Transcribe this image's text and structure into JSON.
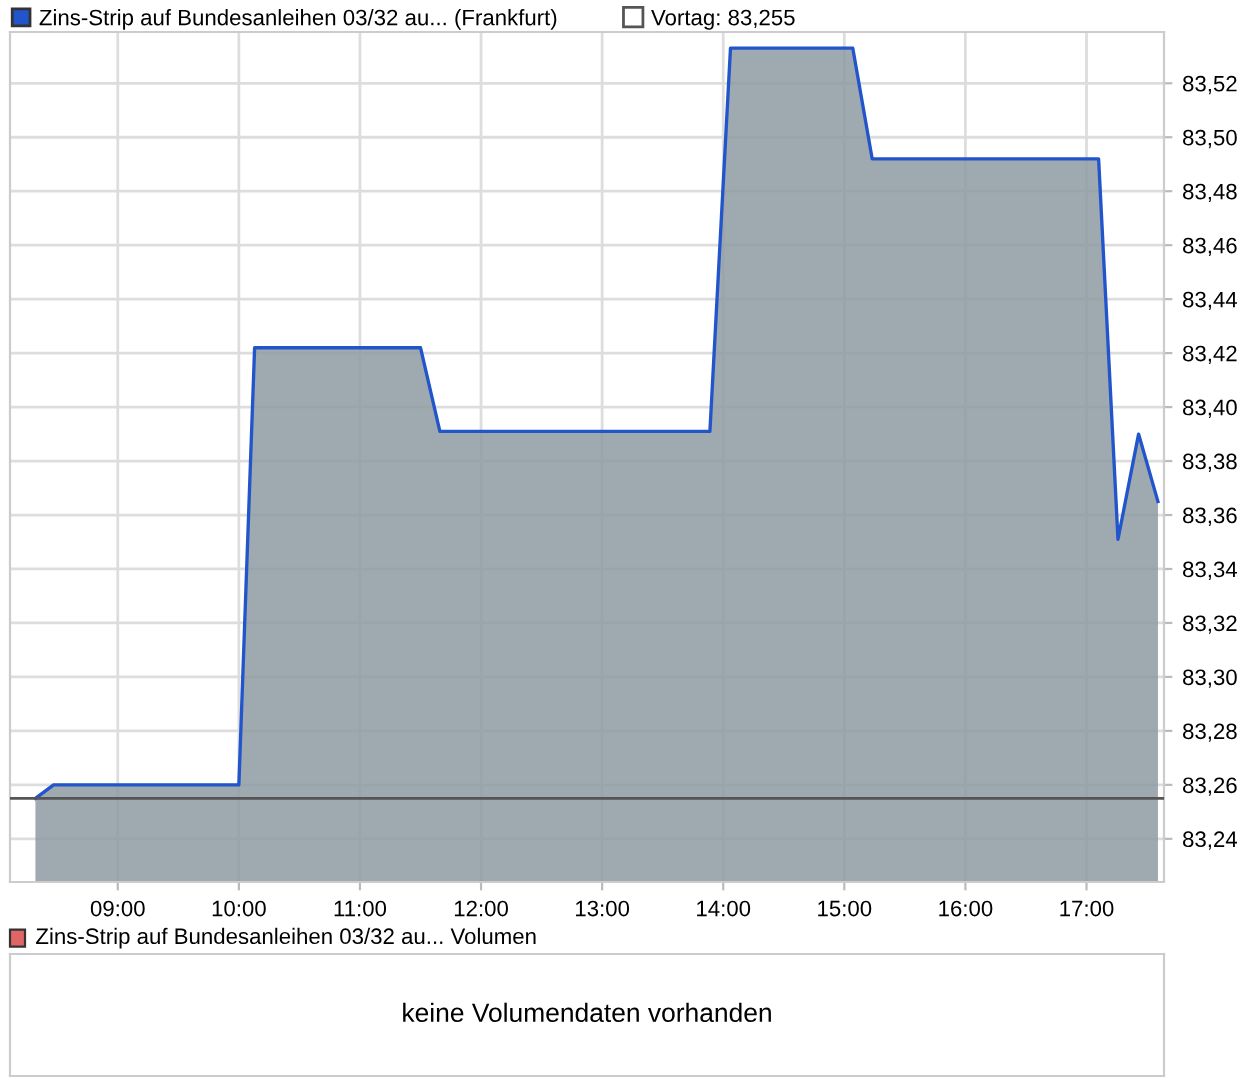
{
  "chart_data": [
    {
      "type": "area",
      "x": [
        8.32,
        8.47,
        10.0,
        10.13,
        11.5,
        11.66,
        13.89,
        14.06,
        15.07,
        15.23,
        17.1,
        17.26,
        17.43,
        17.59
      ],
      "series": [
        {
          "name": "Zins-Strip auf Bundesanleihen 03/32 au... (Frankfurt)",
          "color": "#2255cc",
          "values": [
            83.255,
            83.26,
            83.26,
            83.422,
            83.422,
            83.391,
            83.391,
            83.533,
            83.533,
            83.492,
            83.492,
            83.351,
            83.39,
            83.365
          ]
        }
      ],
      "xlim": [
        8.11,
        17.64
      ],
      "xticks": [
        {
          "value": 9,
          "label": "09:00"
        },
        {
          "value": 10,
          "label": "10:00"
        },
        {
          "value": 11,
          "label": "11:00"
        },
        {
          "value": 12,
          "label": "12:00"
        },
        {
          "value": 13,
          "label": "13:00"
        },
        {
          "value": 14,
          "label": "14:00"
        },
        {
          "value": 15,
          "label": "15:00"
        },
        {
          "value": 16,
          "label": "16:00"
        },
        {
          "value": 17,
          "label": "17:00"
        }
      ],
      "ylim": [
        83.224,
        83.539
      ],
      "yticks": [
        {
          "value": 83.24,
          "label": "83,24"
        },
        {
          "value": 83.26,
          "label": "83,26"
        },
        {
          "value": 83.28,
          "label": "83,28"
        },
        {
          "value": 83.3,
          "label": "83,30"
        },
        {
          "value": 83.32,
          "label": "83,32"
        },
        {
          "value": 83.34,
          "label": "83,34"
        },
        {
          "value": 83.36,
          "label": "83,36"
        },
        {
          "value": 83.38,
          "label": "83,38"
        },
        {
          "value": 83.4,
          "label": "83,40"
        },
        {
          "value": 83.42,
          "label": "83,42"
        },
        {
          "value": 83.44,
          "label": "83,44"
        },
        {
          "value": 83.46,
          "label": "83,46"
        },
        {
          "value": 83.48,
          "label": "83,48"
        },
        {
          "value": 83.5,
          "label": "83,50"
        },
        {
          "value": 83.52,
          "label": "83,52"
        }
      ],
      "ref_lines": [
        {
          "axis": "y",
          "value": 83.255,
          "label": "Vortag: 83,255",
          "color": "#555555"
        }
      ],
      "grid": true,
      "legend": "top left"
    },
    {
      "type": "other",
      "title": "Zins-Strip auf Bundesanleihen 03/32 au... Volumen",
      "annotations": [
        "keine Volumendaten vorhanden"
      ]
    }
  ]
}
